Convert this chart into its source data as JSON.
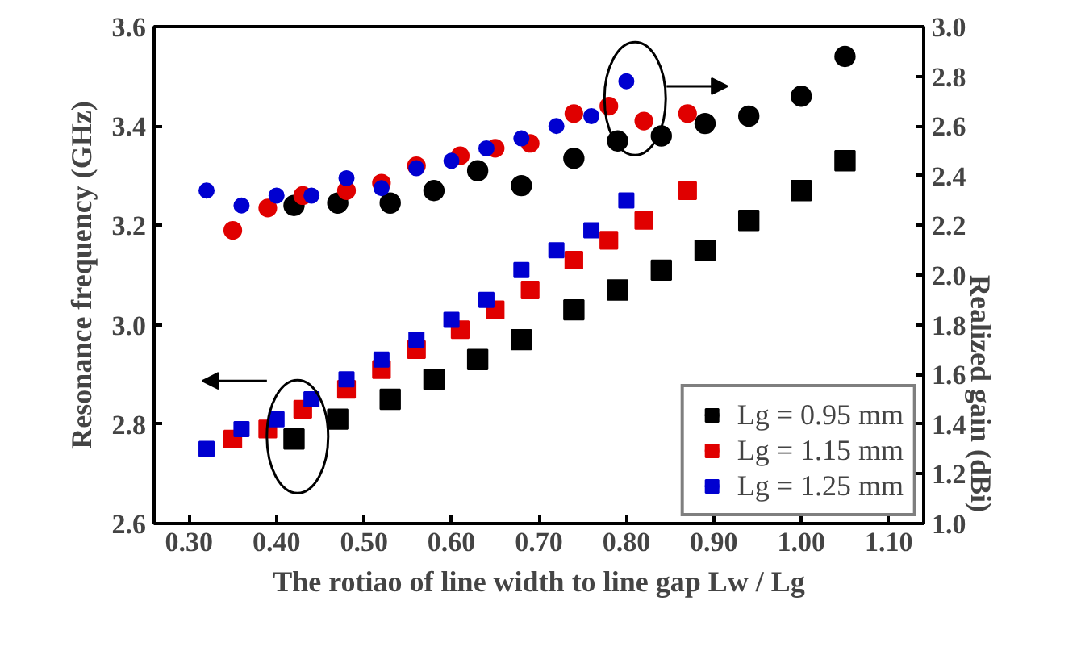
{
  "chart_data": {
    "type": "scatter",
    "xlabel": "The rotiao of line width to line gap Lw / Lg",
    "ylabel": "Resonance frequency (GHz)",
    "y2label": "Realized gain (dBi)",
    "xlim": [
      0.26,
      1.14
    ],
    "xticks": [
      {
        "value": 0.3,
        "label": "0.30"
      },
      {
        "value": 0.4,
        "label": "0.40"
      },
      {
        "value": 0.5,
        "label": "0.50"
      },
      {
        "value": 0.6,
        "label": "0.60"
      },
      {
        "value": 0.7,
        "label": "0.70"
      },
      {
        "value": 0.8,
        "label": "0.80"
      },
      {
        "value": 0.9,
        "label": "0.90"
      },
      {
        "value": 1.0,
        "label": "1.00"
      },
      {
        "value": 1.1,
        "label": "1.10"
      }
    ],
    "ylim": [
      2.6,
      3.6
    ],
    "yticks": [
      2.6,
      2.8,
      {
        "value": 3.0,
        "label": "3.0"
      },
      3.2,
      3.4,
      3.6
    ],
    "y2lim": [
      1.0,
      3.0
    ],
    "y2ticks": [
      {
        "value": 1.0,
        "label": "1.0"
      },
      1.2,
      1.4,
      1.6,
      1.8,
      {
        "value": 2.0,
        "label": "2.0"
      },
      2.2,
      2.4,
      2.6,
      2.8,
      {
        "value": 3.0,
        "label": "3.0"
      }
    ],
    "grid": false,
    "legend": "bottom right",
    "series": [
      {
        "name": "Lg = 0.95 mm",
        "color": "#000000",
        "marker": "square",
        "x": [
          0.42,
          0.47,
          0.53,
          0.58,
          0.63,
          0.68,
          0.74,
          0.79,
          0.84,
          0.89,
          0.94,
          1.0,
          1.05
        ],
        "values": [
          2.77,
          2.81,
          2.85,
          2.89,
          2.93,
          2.97,
          3.03,
          3.07,
          3.11,
          3.15,
          3.21,
          3.27,
          3.33
        ]
      },
      {
        "name": "Lg = 1.15 mm",
        "color": "#e00000",
        "marker": "square",
        "x": [
          0.35,
          0.39,
          0.43,
          0.48,
          0.52,
          0.56,
          0.61,
          0.65,
          0.69,
          0.74,
          0.78,
          0.82,
          0.87
        ],
        "values": [
          2.77,
          2.79,
          2.83,
          2.87,
          2.91,
          2.95,
          2.99,
          3.03,
          3.07,
          3.13,
          3.17,
          3.21,
          3.27
        ]
      },
      {
        "name": "Lg = 1.25 mm",
        "color": "#0000d0",
        "marker": "square",
        "x": [
          0.32,
          0.36,
          0.4,
          0.44,
          0.48,
          0.52,
          0.56,
          0.6,
          0.64,
          0.68,
          0.72,
          0.76,
          0.8
        ],
        "values": [
          2.75,
          2.79,
          2.81,
          2.85,
          2.89,
          2.93,
          2.97,
          3.01,
          3.05,
          3.11,
          3.15,
          3.19,
          3.25
        ]
      },
      {
        "color": "#000000",
        "marker": "circle",
        "axis": "y2",
        "x": [
          0.42,
          0.47,
          0.53,
          0.58,
          0.63,
          0.68,
          0.74,
          0.79,
          0.84,
          0.89,
          0.94,
          1.0,
          1.05
        ],
        "values": [
          2.28,
          2.29,
          2.29,
          2.34,
          2.42,
          2.36,
          2.47,
          2.54,
          2.56,
          2.61,
          2.64,
          2.72,
          2.88
        ]
      },
      {
        "color": "#e00000",
        "marker": "circle",
        "axis": "y2",
        "x": [
          0.35,
          0.39,
          0.43,
          0.48,
          0.52,
          0.56,
          0.61,
          0.65,
          0.69,
          0.74,
          0.78,
          0.82,
          0.87
        ],
        "values": [
          2.18,
          2.27,
          2.32,
          2.34,
          2.37,
          2.44,
          2.48,
          2.51,
          2.53,
          2.65,
          2.68,
          2.62,
          2.65
        ]
      },
      {
        "color": "#0000d0",
        "marker": "circle",
        "axis": "y2",
        "x": [
          0.32,
          0.36,
          0.4,
          0.44,
          0.48,
          0.52,
          0.56,
          0.6,
          0.64,
          0.68,
          0.72,
          0.76,
          0.8
        ],
        "values": [
          2.34,
          2.28,
          2.32,
          2.32,
          2.39,
          2.35,
          2.43,
          2.46,
          2.51,
          2.55,
          2.6,
          2.64,
          2.78
        ]
      }
    ]
  }
}
